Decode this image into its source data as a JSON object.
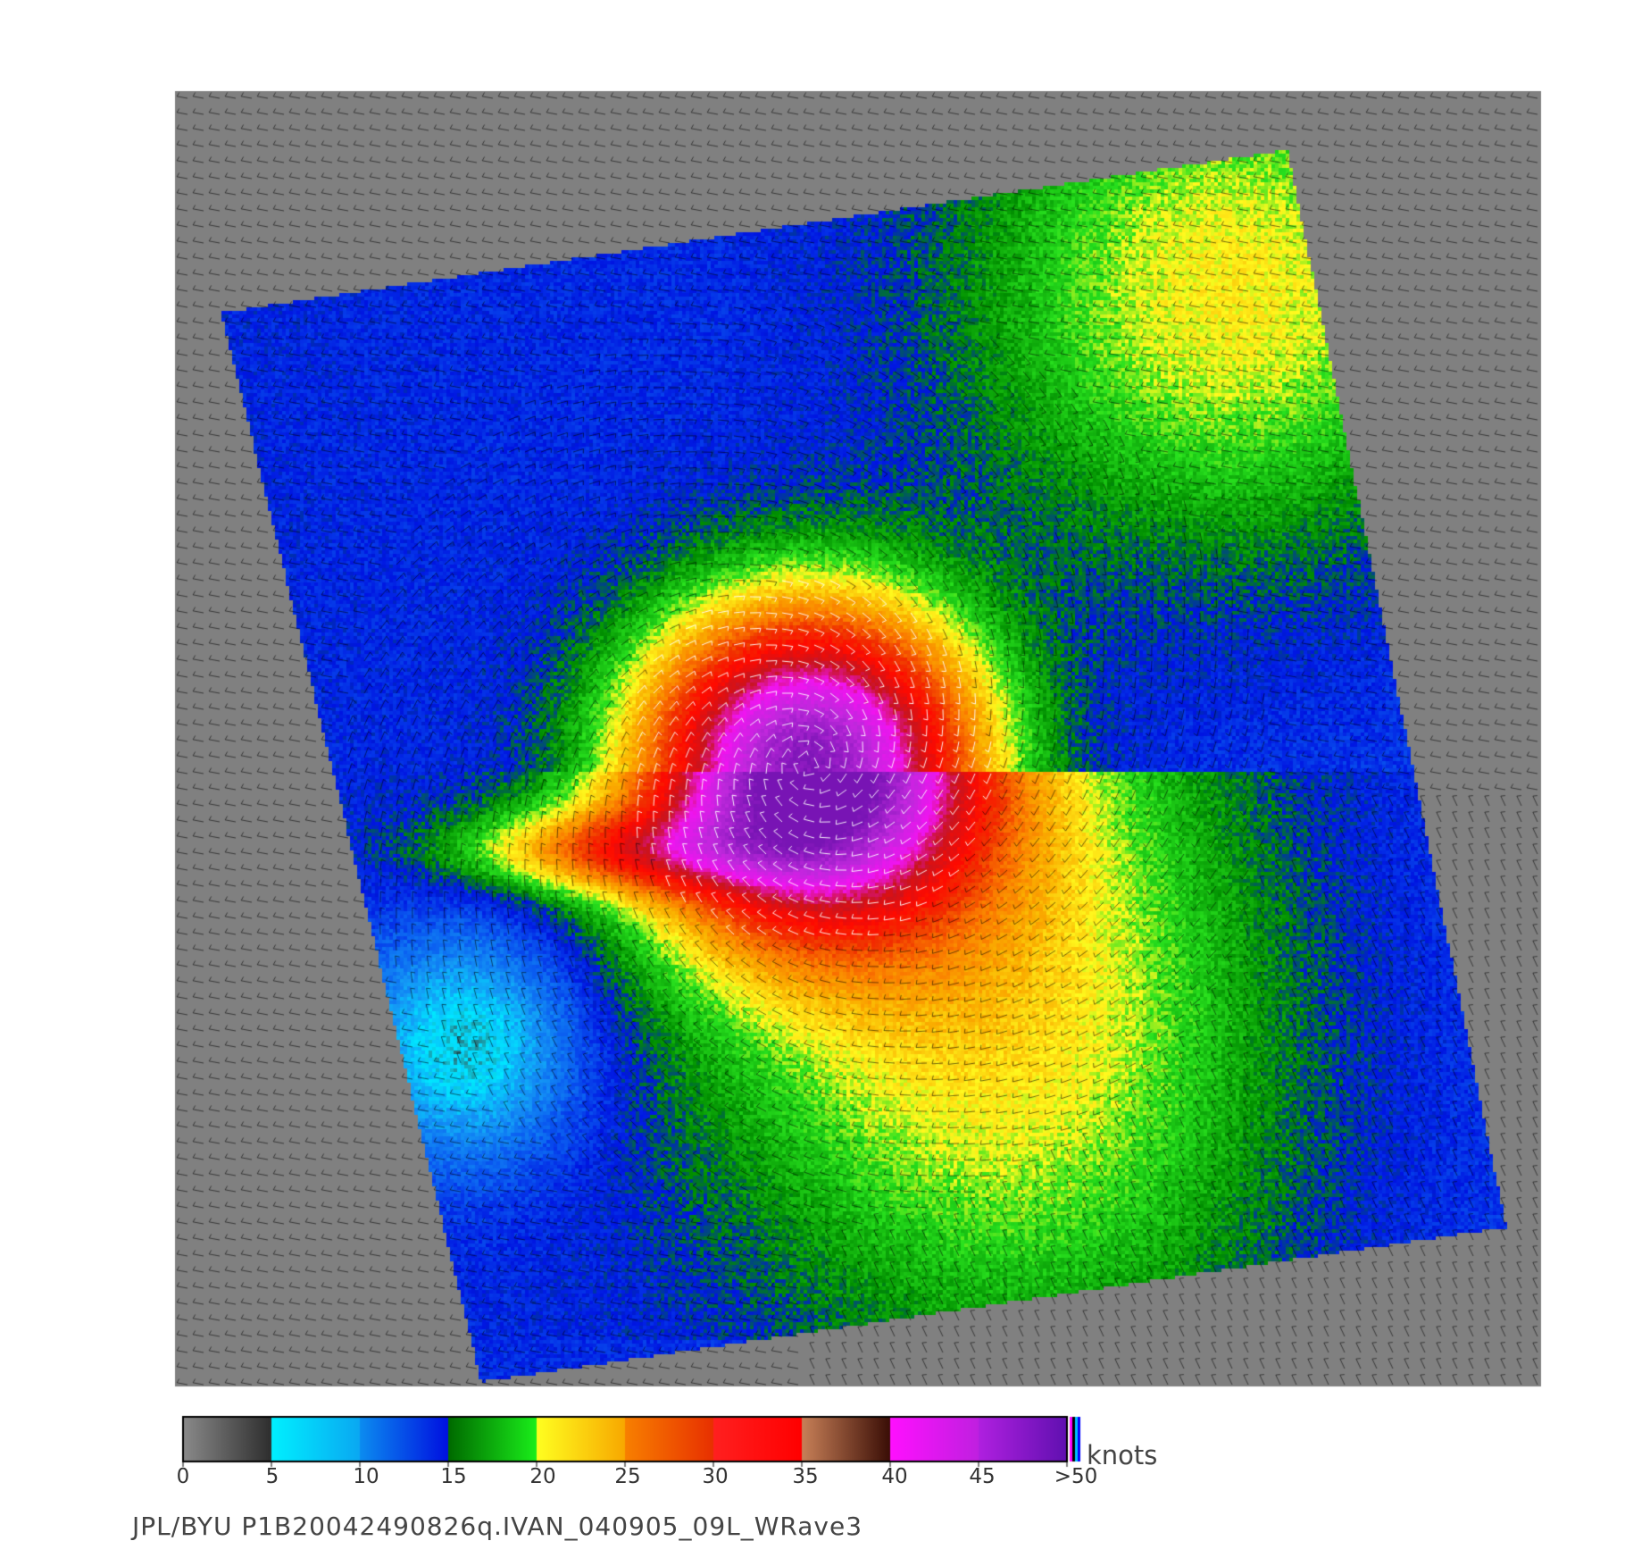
{
  "legend": {
    "unit": "knots",
    "ticks": [
      "0",
      "5",
      "10",
      "15",
      "20",
      "25",
      "30",
      "35",
      "40",
      "45",
      ">50"
    ],
    "segments": [
      {
        "from": 0,
        "to": 5,
        "start": "#8a8a8a",
        "end": "#2e2e2e"
      },
      {
        "from": 5,
        "to": 10,
        "start": "#00f0ff",
        "end": "#0aa8f2"
      },
      {
        "from": 10,
        "to": 15,
        "start": "#0c8cf0",
        "end": "#0010e0"
      },
      {
        "from": 15,
        "to": 20,
        "start": "#006a00",
        "end": "#1aee1a"
      },
      {
        "from": 20,
        "to": 25,
        "start": "#ffff20",
        "end": "#f8a800"
      },
      {
        "from": 25,
        "to": 30,
        "start": "#f88000",
        "end": "#e83000"
      },
      {
        "from": 30,
        "to": 35,
        "start": "#ff2020",
        "end": "#ff0000"
      },
      {
        "from": 35,
        "to": 40,
        "start": "#c88058",
        "end": "#3a0e06"
      },
      {
        "from": 40,
        "to": 45,
        "start": "#ff10ff",
        "end": "#c020e0"
      },
      {
        "from": 45,
        "to": 50,
        "start": "#b020e0",
        "end": "#6010b0"
      }
    ]
  },
  "caption": "JPL/BYU  P1B20042490826q.IVAN_040905_09L_WRave3",
  "colors": {
    "background_panel": "#808080",
    "ocean_blue": "#0a40f0",
    "light_blue": "#10c0ff",
    "green": "#10c010",
    "yellow": "#ffe020",
    "orange": "#ff8000",
    "red": "#ff1000",
    "magenta": "#d020e0",
    "barb_dark": "#000000",
    "barb_light": "#ffffff"
  }
}
